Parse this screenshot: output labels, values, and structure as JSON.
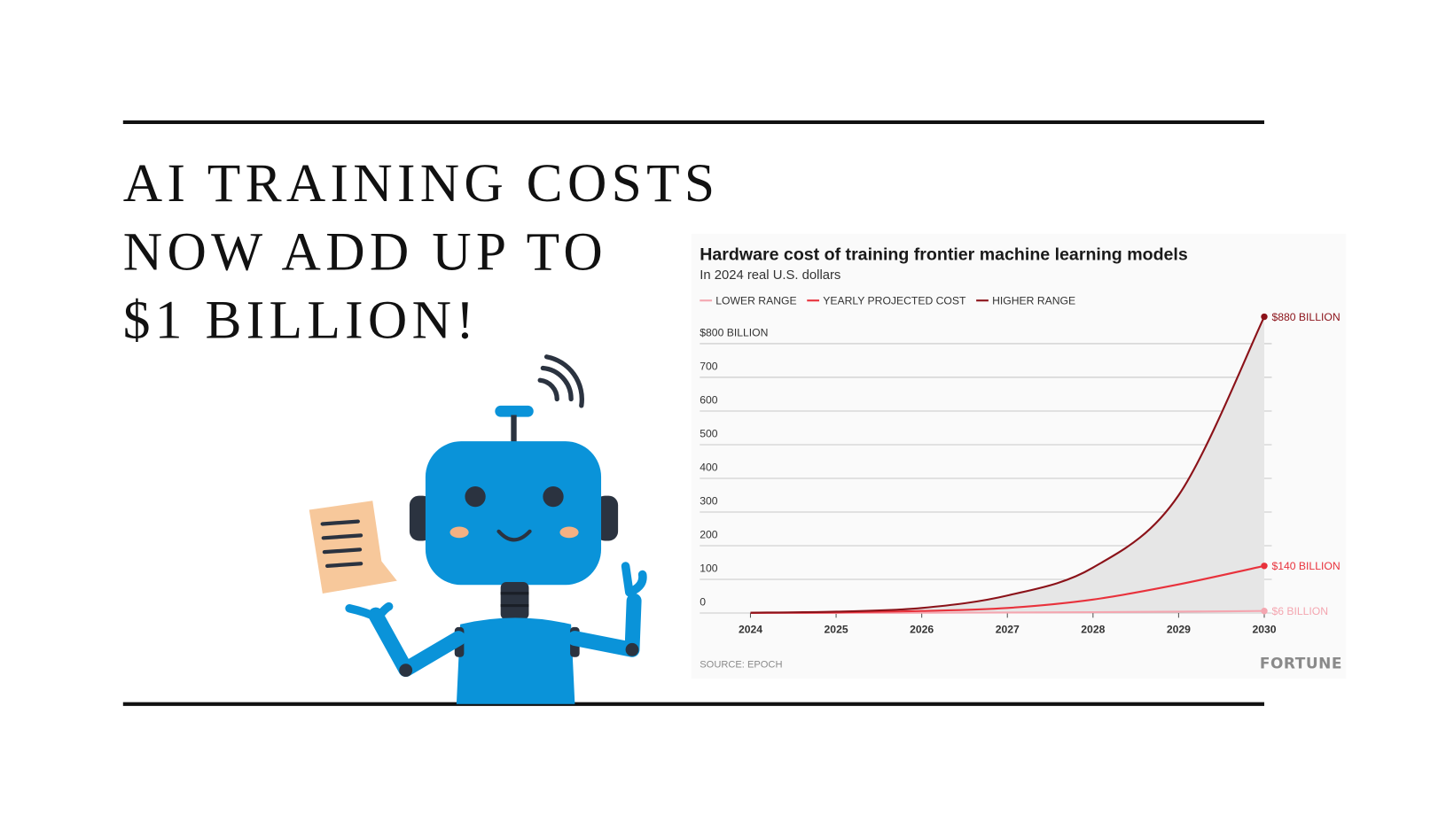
{
  "headline": [
    "AI TRAINING COSTS",
    "NOW ADD UP TO",
    "$1 BILLION!"
  ],
  "chart_data": {
    "type": "line",
    "title": "Hardware cost of training frontier machine learning models",
    "subtitle": "In 2024 real U.S. dollars",
    "source": "SOURCE: EPOCH",
    "publisher": "FORTUNE",
    "x": [
      2024,
      2025,
      2026,
      2027,
      2028,
      2029,
      2030
    ],
    "xlim": [
      2024,
      2030
    ],
    "xticks": [
      2024,
      2025,
      2026,
      2027,
      2028,
      2029,
      2030
    ],
    "ylim": [
      0,
      880
    ],
    "yticks": [
      0,
      100,
      200,
      300,
      400,
      500,
      600,
      700,
      {
        "value": 800,
        "label": "$800 BILLION"
      }
    ],
    "grid": true,
    "legend": "top-left",
    "range_fill": "#e6e6e6",
    "series": [
      {
        "name": "LOWER RANGE",
        "color": "#f4a6b0",
        "values": [
          0.1,
          0.3,
          0.7,
          1.5,
          2.5,
          4,
          6
        ],
        "value_labels": [
          null,
          null,
          null,
          null,
          null,
          null,
          "$6 BILLION"
        ]
      },
      {
        "name": "YEARLY PROJECTED COST",
        "color": "#e8323c",
        "values": [
          0.5,
          2,
          6,
          15,
          40,
          85,
          140
        ],
        "value_labels": [
          null,
          null,
          null,
          null,
          null,
          null,
          "$140 BILLION"
        ]
      },
      {
        "name": "HIGHER RANGE",
        "color": "#8b1219",
        "values": [
          1,
          4,
          15,
          52,
          135,
          350,
          880
        ],
        "value_labels": [
          null,
          null,
          null,
          null,
          null,
          null,
          "$880 BILLION"
        ]
      }
    ]
  }
}
